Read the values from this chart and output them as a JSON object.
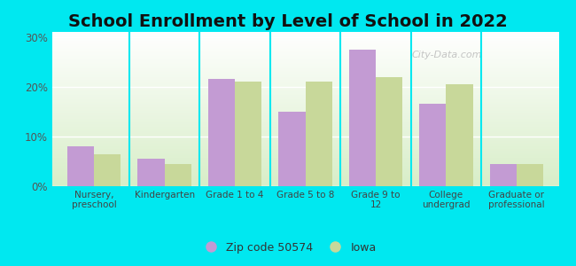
{
  "title": "School Enrollment by Level of School in 2022",
  "categories": [
    "Nursery,\npreschool",
    "Kindergarten",
    "Grade 1 to 4",
    "Grade 5 to 8",
    "Grade 9 to\n12",
    "College\nundergrad",
    "Graduate or\nprofessional"
  ],
  "zip_values": [
    8.0,
    5.5,
    21.5,
    15.0,
    27.5,
    16.5,
    4.5
  ],
  "iowa_values": [
    6.5,
    4.5,
    21.0,
    21.0,
    22.0,
    20.5,
    4.5
  ],
  "zip_color": "#c39bd3",
  "iowa_color": "#c8d89a",
  "zip_label": "Zip code 50574",
  "iowa_label": "Iowa",
  "background_outer": "#00e8f0",
  "gradient_top": "#ffffff",
  "gradient_bottom": "#d8eec8",
  "ylim": [
    0,
    31
  ],
  "yticks": [
    0,
    10,
    20,
    30
  ],
  "ytick_labels": [
    "0%",
    "10%",
    "20%",
    "30%"
  ],
  "bar_width": 0.38,
  "title_fontsize": 14,
  "watermark_text": "City-Data.com",
  "grid_color": "#cccccc",
  "separator_color": "#00e8f0"
}
